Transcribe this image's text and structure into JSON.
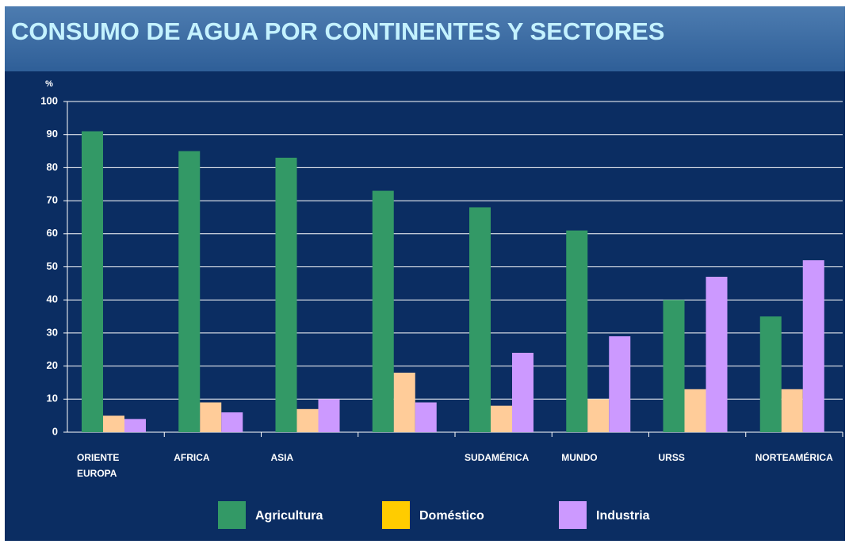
{
  "chart_data": {
    "type": "bar",
    "title": "CONSUMO DE AGUA POR CONTINENTES Y SECTORES",
    "y_label": "%",
    "categories": [
      "ORIENTE EUROPA",
      "AFRICA",
      "ASIA",
      null,
      "SUDAMÉRICA",
      "MUNDO",
      "URSS",
      "NORTEAMÉRICA"
    ],
    "series": [
      {
        "name": "Agricultura",
        "color": "#339966",
        "legend_color": "#339966",
        "values": [
          91,
          85,
          83,
          73,
          68,
          61,
          40,
          35
        ]
      },
      {
        "name": "Doméstico",
        "color": "#ffcc99",
        "legend_color": "#ffcc00",
        "values": [
          5,
          9,
          7,
          18,
          8,
          10,
          13,
          13
        ]
      },
      {
        "name": "Industria",
        "color": "#cc99ff",
        "legend_color": "#cc99ff",
        "values": [
          4,
          6,
          10,
          9,
          24,
          29,
          47,
          52
        ]
      }
    ],
    "ylim": [
      0,
      100
    ],
    "yticks": [
      0,
      10,
      20,
      30,
      40,
      50,
      60,
      70,
      80,
      90,
      100
    ],
    "grid": true
  }
}
